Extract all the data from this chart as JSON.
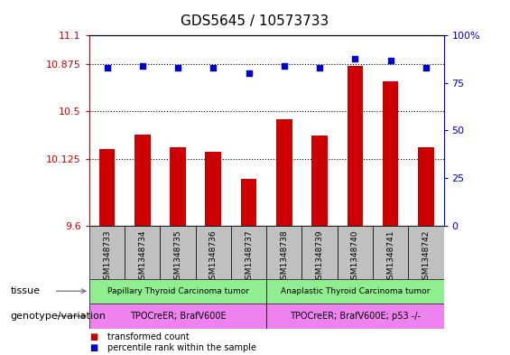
{
  "title": "GDS5645 / 10573733",
  "samples": [
    "GSM1348733",
    "GSM1348734",
    "GSM1348735",
    "GSM1348736",
    "GSM1348737",
    "GSM1348738",
    "GSM1348739",
    "GSM1348740",
    "GSM1348741",
    "GSM1348742"
  ],
  "bar_values": [
    10.2,
    10.32,
    10.22,
    10.18,
    9.97,
    10.44,
    10.31,
    10.86,
    10.74,
    10.22
  ],
  "percentile_values": [
    83,
    84,
    83,
    83,
    80,
    84,
    83,
    88,
    87,
    83
  ],
  "ylim_left": [
    9.6,
    11.1
  ],
  "ylim_right": [
    0,
    100
  ],
  "yticks_left": [
    9.6,
    10.125,
    10.5,
    10.875,
    11.1
  ],
  "yticks_right": [
    0,
    25,
    50,
    75,
    100
  ],
  "hlines": [
    10.875,
    10.5,
    10.125
  ],
  "bar_color": "#CC0000",
  "dot_color": "#0000CC",
  "tissue_labels": [
    "Papillary Thyroid Carcinoma tumor",
    "Anaplastic Thyroid Carcinoma tumor"
  ],
  "tissue_color": "#90EE90",
  "tissue_groups": [
    5,
    5
  ],
  "genotype_labels": [
    "TPOCreER; BrafV600E",
    "TPOCreER; BrafV600E; p53 -/-"
  ],
  "genotype_color": "#EE82EE",
  "sample_bg_color": "#C0C0C0",
  "tissue_row_label": "tissue",
  "genotype_row_label": "genotype/variation",
  "legend_items": [
    "transformed count",
    "percentile rank within the sample"
  ],
  "left_axis_color": "#CC0000",
  "right_axis_color": "#0000CC",
  "plot_bg_color": "#FFFFFF",
  "arrow_color": "#808080"
}
